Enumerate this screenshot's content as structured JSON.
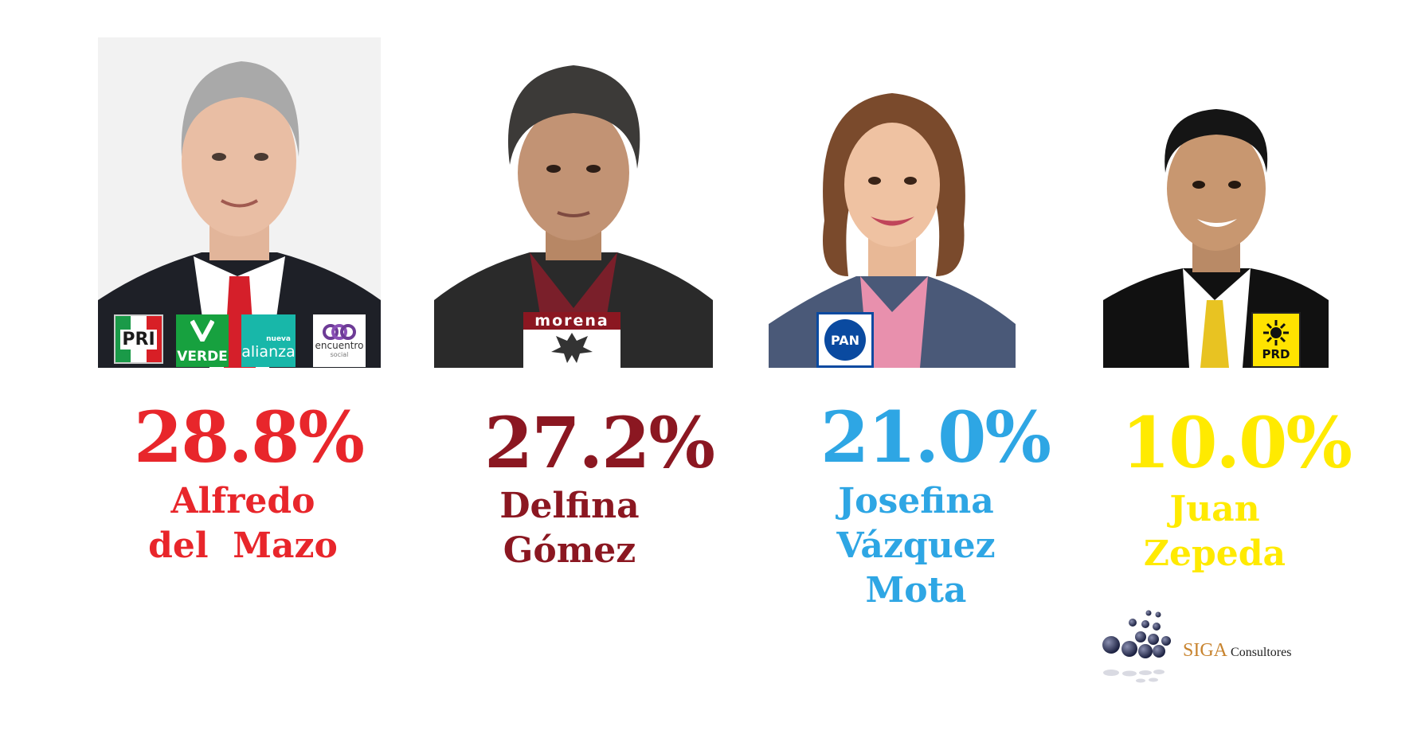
{
  "candidates": [
    {
      "percent": "28.8%",
      "name_lines": [
        "Alfredo",
        "del  Mazo"
      ],
      "color": "#e8262b",
      "party_logos": [
        "PRI",
        "VERDE",
        "alianza",
        "encuentro"
      ],
      "party_logo_small_text": [
        "nueva",
        "social"
      ]
    },
    {
      "percent": "27.2%",
      "name_lines": [
        "Delfina",
        "Gómez"
      ],
      "color": "#8b1721",
      "party_logos": [
        "morena"
      ]
    },
    {
      "percent": "21.0%",
      "name_lines": [
        "Josefina",
        "Vázquez",
        "Mota"
      ],
      "color": "#2ea6e4",
      "party_logos": [
        "PAN"
      ]
    },
    {
      "percent": "10.0%",
      "name_lines": [
        "Juan",
        "Zepeda"
      ],
      "color": "#ffea00",
      "party_logos": [
        "PRD"
      ]
    }
  ],
  "watermark": {
    "brand": "SIGA",
    "suffix": "Consultores",
    "brand_color": "#c8842f",
    "suffix_color": "#222222"
  }
}
